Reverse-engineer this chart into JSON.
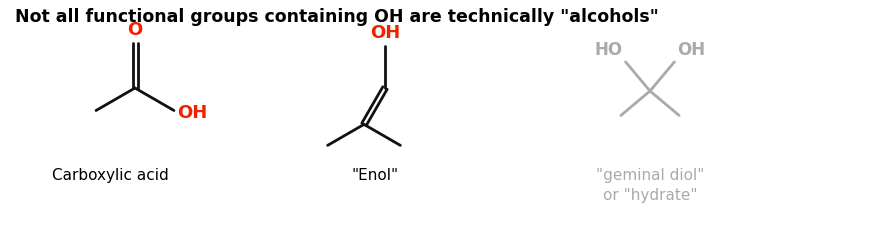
{
  "title": "Not all functional groups containing OH are technically \"alcohols\"",
  "title_fontsize": 12.5,
  "title_fontweight": "bold",
  "title_color": "#000000",
  "background_color": "#ffffff",
  "red_color": "#ee2200",
  "black_color": "#111111",
  "gray_color": "#aaaaaa",
  "label1": "Carboxylic acid",
  "label2": "\"Enol\"",
  "label3": "\"geminal diol\"\nor \"hydrate\"",
  "label_fontsize": 11,
  "label1_color": "#000000",
  "label2_color": "#000000",
  "label3_color": "#aaaaaa",
  "lw": 2.0
}
